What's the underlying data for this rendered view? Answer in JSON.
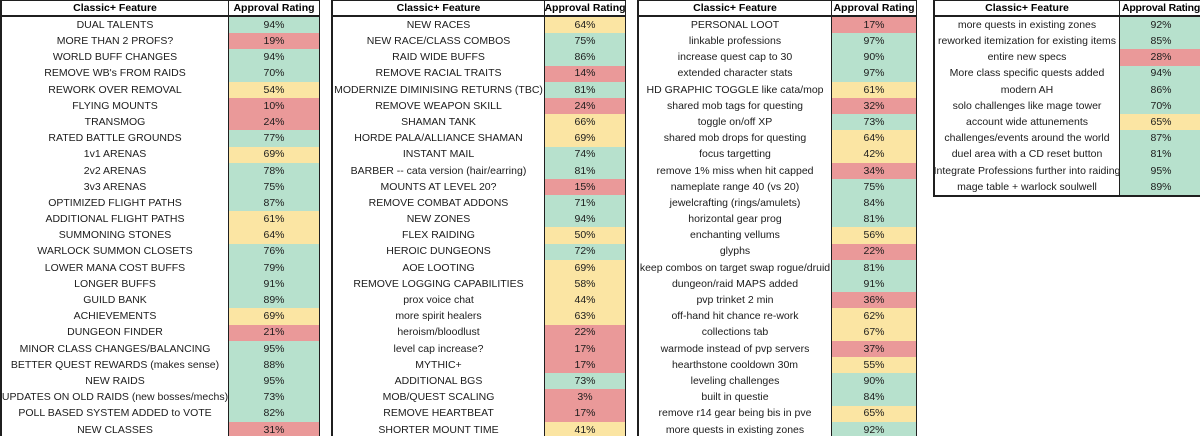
{
  "colors": {
    "green": "#b7e1cd",
    "yellow": "#fbe5a3",
    "red": "#ea9999",
    "border": "#1f1f1f",
    "text": "#1c1c1c"
  },
  "thresholds": {
    "green_min": 70,
    "yellow_min": 40
  },
  "groups": [
    {
      "header": {
        "feature": "Classic+ Feature",
        "rating": "Approval Rating"
      },
      "rows": [
        {
          "feature": "DUAL TALENTS",
          "rating": "94%"
        },
        {
          "feature": "MORE THAN 2 PROFS?",
          "rating": "19%"
        },
        {
          "feature": "WORLD BUFF CHANGES",
          "rating": "94%"
        },
        {
          "feature": "REMOVE WB's FROM RAIDS",
          "rating": "70%"
        },
        {
          "feature": "REWORK OVER REMOVAL",
          "rating": "54%"
        },
        {
          "feature": "FLYING MOUNTS",
          "rating": "10%"
        },
        {
          "feature": "TRANSMOG",
          "rating": "24%"
        },
        {
          "feature": "RATED BATTLE GROUNDS",
          "rating": "77%"
        },
        {
          "feature": "1v1 ARENAS",
          "rating": "69%"
        },
        {
          "feature": "2v2 ARENAS",
          "rating": "78%"
        },
        {
          "feature": "3v3 ARENAS",
          "rating": "75%"
        },
        {
          "feature": "OPTIMIZED FLIGHT PATHS",
          "rating": "87%"
        },
        {
          "feature": "ADDITIONAL FLIGHT PATHS",
          "rating": "61%"
        },
        {
          "feature": "SUMMONING STONES",
          "rating": "64%"
        },
        {
          "feature": "WARLOCK SUMMON CLOSETS",
          "rating": "76%"
        },
        {
          "feature": "LOWER MANA COST BUFFS",
          "rating": "79%"
        },
        {
          "feature": "LONGER BUFFS",
          "rating": "91%"
        },
        {
          "feature": "GUILD BANK",
          "rating": "89%"
        },
        {
          "feature": "ACHIEVEMENTS",
          "rating": "69%"
        },
        {
          "feature": "DUNGEON FINDER",
          "rating": "21%"
        },
        {
          "feature": "MINOR CLASS CHANGES/BALANCING",
          "rating": "95%"
        },
        {
          "feature": "BETTER QUEST REWARDS (makes sense)",
          "rating": "88%"
        },
        {
          "feature": "NEW RAIDS",
          "rating": "95%"
        },
        {
          "feature": "UPDATES ON OLD RAIDS (new bosses/mechs)",
          "rating": "73%"
        },
        {
          "feature": "POLL BASED SYSTEM ADDED to VOTE",
          "rating": "82%"
        },
        {
          "feature": "NEW CLASSES",
          "rating": "31%"
        }
      ]
    },
    {
      "header": {
        "feature": "Classic+ Feature",
        "rating": "Approval Rating"
      },
      "rows": [
        {
          "feature": "NEW RACES",
          "rating": "64%"
        },
        {
          "feature": "NEW RACE/CLASS COMBOS",
          "rating": "75%"
        },
        {
          "feature": "RAID WIDE BUFFS",
          "rating": "86%"
        },
        {
          "feature": "REMOVE RACIAL TRAITS",
          "rating": "14%"
        },
        {
          "feature": "MODERNIZE DIMINISING RETURNS (TBC)",
          "rating": "81%"
        },
        {
          "feature": "REMOVE WEAPON SKILL",
          "rating": "24%"
        },
        {
          "feature": "SHAMAN TANK",
          "rating": "66%"
        },
        {
          "feature": "HORDE PALA/ALLIANCE SHAMAN",
          "rating": "69%"
        },
        {
          "feature": "INSTANT MAIL",
          "rating": "74%"
        },
        {
          "feature": "BARBER -- cata version (hair/earring)",
          "rating": "81%"
        },
        {
          "feature": "MOUNTS AT LEVEL 20?",
          "rating": "15%"
        },
        {
          "feature": "REMOVE COMBAT ADDONS",
          "rating": "71%"
        },
        {
          "feature": "NEW ZONES",
          "rating": "94%"
        },
        {
          "feature": "FLEX RAIDING",
          "rating": "50%"
        },
        {
          "feature": "HEROIC DUNGEONS",
          "rating": "72%"
        },
        {
          "feature": "AOE LOOTING",
          "rating": "69%"
        },
        {
          "feature": "REMOVE LOGGING CAPABILITIES",
          "rating": "58%"
        },
        {
          "feature": "prox voice chat",
          "rating": "44%"
        },
        {
          "feature": "more spirit healers",
          "rating": "63%"
        },
        {
          "feature": "heroism/bloodlust",
          "rating": "22%"
        },
        {
          "feature": "level cap increase?",
          "rating": "17%"
        },
        {
          "feature": "MYTHIC+",
          "rating": "17%"
        },
        {
          "feature": "ADDITIONAL BGS",
          "rating": "73%"
        },
        {
          "feature": "MOB/QUEST SCALING",
          "rating": "3%"
        },
        {
          "feature": "REMOVE HEARTBEAT",
          "rating": "17%"
        },
        {
          "feature": "SHORTER MOUNT TIME",
          "rating": "41%"
        }
      ]
    },
    {
      "header": {
        "feature": "Classic+ Feature",
        "rating": "Approval Rating"
      },
      "rows": [
        {
          "feature": "PERSONAL LOOT",
          "rating": "17%"
        },
        {
          "feature": "linkable professions",
          "rating": "97%"
        },
        {
          "feature": "increase quest cap to 30",
          "rating": "90%"
        },
        {
          "feature": "extended character stats",
          "rating": "97%"
        },
        {
          "feature": "HD GRAPHIC TOGGLE like cata/mop",
          "rating": "61%"
        },
        {
          "feature": "shared mob tags for questing",
          "rating": "32%"
        },
        {
          "feature": "toggle on/off XP",
          "rating": "73%"
        },
        {
          "feature": "shared mob drops for questing",
          "rating": "64%"
        },
        {
          "feature": "focus targetting",
          "rating": "42%"
        },
        {
          "feature": "remove 1% miss when hit capped",
          "rating": "34%"
        },
        {
          "feature": "nameplate range 40 (vs 20)",
          "rating": "75%"
        },
        {
          "feature": "jewelcrafting (rings/amulets)",
          "rating": "84%"
        },
        {
          "feature": "horizontal gear prog",
          "rating": "81%"
        },
        {
          "feature": "enchanting vellums",
          "rating": "56%"
        },
        {
          "feature": "glyphs",
          "rating": "22%"
        },
        {
          "feature": "keep combos on target swap rogue/druid",
          "rating": "81%"
        },
        {
          "feature": "dungeon/raid MAPS added",
          "rating": "91%"
        },
        {
          "feature": "pvp trinket 2 min",
          "rating": "36%"
        },
        {
          "feature": "off-hand hit chance re-work",
          "rating": "62%"
        },
        {
          "feature": "collections tab",
          "rating": "67%"
        },
        {
          "feature": "warmode instead of pvp servers",
          "rating": "37%"
        },
        {
          "feature": "hearthstone cooldown 30m",
          "rating": "55%"
        },
        {
          "feature": "leveling challenges",
          "rating": "90%"
        },
        {
          "feature": "built in questie",
          "rating": "84%"
        },
        {
          "feature": "remove r14 gear being bis in pve",
          "rating": "65%"
        },
        {
          "feature": "more quests in existing zones",
          "rating": "92%"
        }
      ]
    },
    {
      "header": {
        "feature": "Classic+ Feature",
        "rating": "Approval Rating"
      },
      "rows": [
        {
          "feature": "more quests in existing zones",
          "rating": "92%"
        },
        {
          "feature": "reworked itemization for existing items",
          "rating": "85%"
        },
        {
          "feature": "entire new specs",
          "rating": "28%"
        },
        {
          "feature": "More class specific quests added",
          "rating": "94%"
        },
        {
          "feature": "modern AH",
          "rating": "86%"
        },
        {
          "feature": "solo challenges like mage tower",
          "rating": "70%"
        },
        {
          "feature": "account wide attunements",
          "rating": "65%"
        },
        {
          "feature": "challenges/events around the world",
          "rating": "87%"
        },
        {
          "feature": "duel area with a CD reset button",
          "rating": "81%"
        },
        {
          "feature": "Integrate Professions further into raiding",
          "rating": "95%"
        },
        {
          "feature": "mage table + warlock soulwell",
          "rating": "89%"
        }
      ]
    }
  ]
}
